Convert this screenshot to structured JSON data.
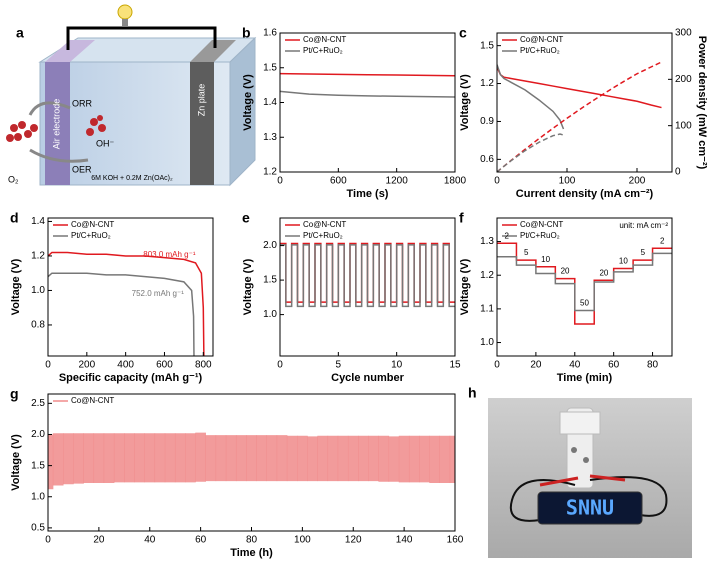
{
  "panels": {
    "a": {
      "label": "a",
      "air_electrode": "Air electrode",
      "zn_plate": "Zn plate",
      "orr": "ORR",
      "oer": "OER",
      "o2": "O₂",
      "oh": "OH⁻",
      "electrolyte": "6M KOH + 0.2M Zn(OAc)₂"
    },
    "h": {
      "label": "h",
      "display": "SNNU"
    }
  },
  "chart_data": [
    {
      "type": "line",
      "label": "b",
      "x_label": "Time (s)",
      "y_label": "Voltage (V)",
      "xlim": [
        0,
        1800
      ],
      "xticks": [
        0,
        600,
        1200,
        1800
      ],
      "ylim": [
        1.2,
        1.6
      ],
      "yticks": [
        1.2,
        1.3,
        1.4,
        1.5,
        1.6
      ],
      "x": [
        0,
        300,
        600,
        900,
        1200,
        1500,
        1800
      ],
      "series": [
        {
          "name": "Co@N-CNT",
          "color": "#e0191f",
          "values": [
            1.483,
            1.482,
            1.481,
            1.48,
            1.479,
            1.478,
            1.477
          ]
        },
        {
          "name": "Pt/C+RuO₂",
          "color": "#777777",
          "values": [
            1.432,
            1.424,
            1.421,
            1.419,
            1.418,
            1.417,
            1.416
          ]
        }
      ]
    },
    {
      "type": "line",
      "label": "c",
      "x_label": "Current density (mA cm⁻²)",
      "y_label": "Voltage (V)",
      "y2_label": "Power density (mW cm⁻²)",
      "xlim": [
        0,
        250
      ],
      "xticks": [
        0,
        100,
        200
      ],
      "ylim": [
        0.5,
        1.6
      ],
      "yticks": [
        0.6,
        0.9,
        1.2,
        1.5
      ],
      "y2lim": [
        0,
        300
      ],
      "y2ticks": [
        0,
        100,
        200,
        300
      ],
      "series": [
        {
          "name": "Co@N-CNT",
          "color": "#e0191f",
          "x": [
            0,
            5,
            10,
            20,
            40,
            60,
            80,
            100,
            120,
            140,
            160,
            180,
            200,
            220,
            235
          ],
          "values": [
            1.33,
            1.27,
            1.25,
            1.24,
            1.22,
            1.2,
            1.18,
            1.16,
            1.14,
            1.12,
            1.1,
            1.08,
            1.06,
            1.03,
            1.01
          ]
        },
        {
          "name": "Pt/C+RuO₂",
          "color": "#777777",
          "x": [
            0,
            5,
            10,
            20,
            40,
            60,
            80,
            90,
            95
          ],
          "values": [
            1.35,
            1.27,
            1.24,
            1.21,
            1.15,
            1.07,
            0.98,
            0.91,
            0.84
          ]
        },
        {
          "color": "#e0191f",
          "dash": true,
          "axis": "y2",
          "x": [
            0,
            5,
            10,
            20,
            40,
            60,
            80,
            100,
            120,
            140,
            160,
            180,
            200,
            220,
            235
          ],
          "values": [
            0,
            6.4,
            12.5,
            24.8,
            48.8,
            72,
            94.4,
            116,
            136.8,
            156.8,
            176,
            194.4,
            212,
            226.6,
            237.4
          ]
        },
        {
          "color": "#777777",
          "dash": true,
          "axis": "y2",
          "x": [
            0,
            5,
            10,
            20,
            40,
            60,
            80,
            90,
            95
          ],
          "values": [
            0,
            6.4,
            12.4,
            24.2,
            46,
            64.2,
            78.4,
            81.9,
            79.8
          ]
        }
      ]
    },
    {
      "type": "line",
      "label": "d",
      "x_label": "Specific capacity (mAh g⁻¹)",
      "y_label": "Voltage (V)",
      "xlim": [
        0,
        850
      ],
      "xticks": [
        0,
        200,
        400,
        600,
        800
      ],
      "ylim": [
        0.62,
        1.42
      ],
      "yticks": [
        0.8,
        {
          "value": 1,
          "label": "1.0"
        },
        1.2,
        1.4
      ],
      "series": [
        {
          "name": "Co@N-CNT",
          "color": "#e0191f",
          "x": [
            0,
            20,
            100,
            200,
            300,
            400,
            500,
            600,
            700,
            760,
            790,
            800,
            803
          ],
          "values": [
            1.2,
            1.22,
            1.22,
            1.21,
            1.21,
            1.2,
            1.2,
            1.19,
            1.18,
            1.16,
            1.1,
            0.9,
            0.62
          ]
        },
        {
          "name": "Pt/C+RuO₂",
          "color": "#777777",
          "x": [
            0,
            20,
            100,
            200,
            300,
            400,
            500,
            600,
            700,
            740,
            750,
            752
          ],
          "values": [
            1.08,
            1.1,
            1.1,
            1.1,
            1.09,
            1.09,
            1.08,
            1.07,
            1.05,
            1,
            0.85,
            0.62
          ]
        }
      ],
      "annotations": [
        "803.0 mAh g⁻¹",
        "752.0 mAh g⁻¹"
      ]
    },
    {
      "type": "line",
      "label": "e",
      "x_label": "Cycle number",
      "y_label": "Voltage (V)",
      "xlim": [
        0,
        15
      ],
      "xticks": [
        0,
        5,
        10,
        15
      ],
      "ylim": [
        0.4,
        2.4
      ],
      "yticks": [
        {
          "value": 1,
          "label": "1.0"
        },
        1.5,
        {
          "value": 2,
          "label": "2.0"
        }
      ],
      "x": [
        0,
        0.5,
        0.5,
        1,
        1,
        1.5,
        1.5,
        2,
        2,
        2.5,
        2.5,
        3,
        3,
        3.5,
        3.5,
        4,
        4,
        4.5,
        4.5,
        5,
        5,
        5.5,
        5.5,
        6,
        6,
        6.5,
        6.5,
        7,
        7,
        7.5,
        7.5,
        8,
        8,
        8.5,
        8.5,
        9,
        9,
        9.5,
        9.5,
        10,
        10,
        10.5,
        10.5,
        11,
        11,
        11.5,
        11.5,
        12,
        12,
        12.5,
        12.5,
        13,
        13,
        13.5,
        13.5,
        14,
        14,
        14.5,
        14.5,
        15
      ],
      "series": [
        {
          "name": "Co@N-CNT",
          "color": "#e0191f",
          "values": [
            2.03,
            2.03,
            1.18,
            1.18,
            2.03,
            2.03,
            1.18,
            1.18,
            2.03,
            2.03,
            1.18,
            1.18,
            2.03,
            2.03,
            1.18,
            1.18,
            2.03,
            2.03,
            1.18,
            1.18,
            2.03,
            2.03,
            1.18,
            1.18,
            2.03,
            2.03,
            1.18,
            1.18,
            2.03,
            2.03,
            1.18,
            1.18,
            2.03,
            2.03,
            1.18,
            1.18,
            2.03,
            2.03,
            1.18,
            1.18,
            2.03,
            2.03,
            1.18,
            1.18,
            2.03,
            2.03,
            1.18,
            1.18,
            2.03,
            2.03,
            1.18,
            1.18,
            2.03,
            2.03,
            1.18,
            1.18,
            2.03,
            2.03,
            1.18,
            1.18
          ]
        },
        {
          "name": "Pt/C+RuO₂",
          "color": "#777777",
          "values": [
            2.01,
            2.01,
            1.12,
            1.12,
            2.01,
            2.01,
            1.12,
            1.12,
            2.01,
            2.01,
            1.12,
            1.12,
            2.01,
            2.01,
            1.12,
            1.12,
            2.01,
            2.01,
            1.12,
            1.12,
            2.01,
            2.01,
            1.12,
            1.12,
            2.01,
            2.01,
            1.12,
            1.12,
            2.01,
            2.01,
            1.12,
            1.12,
            2.01,
            2.01,
            1.12,
            1.12,
            2.01,
            2.01,
            1.12,
            1.12,
            2.01,
            2.01,
            1.12,
            1.12,
            2.01,
            2.01,
            1.12,
            1.12,
            2.01,
            2.01,
            1.12,
            1.12,
            2.01,
            2.01,
            1.12,
            1.12,
            2.01,
            2.01,
            1.12,
            1.12
          ]
        }
      ]
    },
    {
      "type": "line",
      "label": "f",
      "x_label": "Time (min)",
      "y_label": "Voltage (V)",
      "note": "unit: mA cm⁻²",
      "xlim": [
        0,
        90
      ],
      "xticks": [
        0,
        20,
        40,
        60,
        80
      ],
      "ylim": [
        0.96,
        1.37
      ],
      "yticks": [
        {
          "value": 1,
          "label": "1.0"
        },
        1.1,
        1.2,
        1.3
      ],
      "x": [
        0,
        10,
        10,
        20,
        20,
        30,
        30,
        40,
        40,
        50,
        50,
        60,
        60,
        70,
        70,
        80,
        80,
        90
      ],
      "series": [
        {
          "name": "Co@N-CNT",
          "color": "#e0191f",
          "values": [
            1.295,
            1.295,
            1.245,
            1.245,
            1.225,
            1.225,
            1.19,
            1.19,
            1.055,
            1.055,
            1.185,
            1.185,
            1.22,
            1.22,
            1.245,
            1.245,
            1.28,
            1.28
          ]
        },
        {
          "name": "Pt/C+RuO₂",
          "color": "#777777",
          "values": [
            1.255,
            1.255,
            1.23,
            1.23,
            1.205,
            1.205,
            1.175,
            1.175,
            1.095,
            1.095,
            1.18,
            1.18,
            1.21,
            1.21,
            1.23,
            1.23,
            1.265,
            1.265
          ]
        }
      ],
      "current_densities": [
        2,
        5,
        10,
        20,
        50,
        20,
        10,
        5,
        2
      ]
    },
    {
      "type": "band",
      "label": "g",
      "x_label": "Time (h)",
      "y_label": "Voltage (V)",
      "xlim": [
        0,
        160
      ],
      "xticks": [
        0,
        20,
        40,
        60,
        80,
        100,
        120,
        140,
        160
      ],
      "ylim": [
        0.45,
        2.65
      ],
      "yticks": [
        0.5,
        {
          "value": 1,
          "label": "1.0"
        },
        1.5,
        {
          "value": 2,
          "label": "2.0"
        },
        2.5
      ],
      "x": [
        0,
        4,
        8,
        12,
        16,
        20,
        24,
        28,
        32,
        36,
        40,
        44,
        48,
        52,
        56,
        60,
        64,
        68,
        72,
        76,
        80,
        84,
        88,
        92,
        96,
        100,
        104,
        108,
        112,
        116,
        120,
        124,
        128,
        132,
        136,
        140,
        144,
        148,
        152,
        156,
        160
      ],
      "series": [
        {
          "name": "Co@N-CNT",
          "color": "#f08a8a",
          "upper": [
            2.0,
            2.02,
            2.02,
            2.02,
            2.02,
            2.02,
            2.02,
            2.02,
            2.02,
            2.02,
            2.02,
            2.02,
            2.02,
            2.02,
            2.02,
            2.03,
            1.99,
            1.99,
            1.99,
            1.99,
            1.99,
            1.99,
            1.99,
            1.99,
            1.98,
            1.98,
            1.97,
            1.98,
            1.98,
            1.98,
            1.98,
            1.98,
            1.98,
            1.98,
            1.97,
            1.98,
            1.98,
            1.98,
            1.98,
            1.98,
            1.98
          ],
          "lower": [
            1.12,
            1.18,
            1.2,
            1.21,
            1.22,
            1.22,
            1.22,
            1.23,
            1.23,
            1.23,
            1.23,
            1.23,
            1.23,
            1.23,
            1.23,
            1.24,
            1.25,
            1.25,
            1.25,
            1.25,
            1.25,
            1.25,
            1.25,
            1.25,
            1.25,
            1.25,
            1.25,
            1.25,
            1.25,
            1.25,
            1.25,
            1.25,
            1.25,
            1.24,
            1.24,
            1.23,
            1.23,
            1.23,
            1.22,
            1.22,
            1.22
          ]
        }
      ]
    }
  ]
}
